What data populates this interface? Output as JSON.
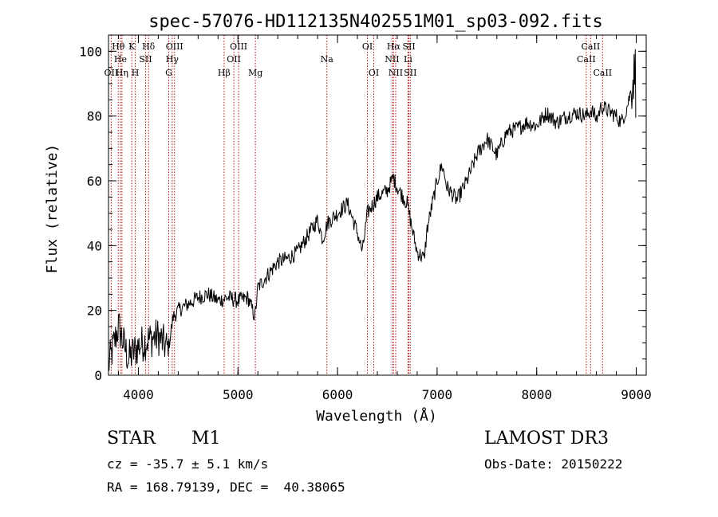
{
  "title": "spec-57076-HD112135N402551M01_sp03-092.fits",
  "footer": {
    "object_class": "STAR",
    "subclass": "M1",
    "redshift": "cz = -35.7 ± 5.1 km/s",
    "coords": "RA = 168.79139, DEC =  40.38065",
    "survey": "LAMOST DR3",
    "obs_date": "Obs-Date: 20150222"
  },
  "chart_data": {
    "type": "line",
    "title": "spec-57076-HD112135N402551M01_sp03-092.fits",
    "xlabel": "Wavelength (Å)",
    "ylabel": "Flux (relative)",
    "xlim": [
      3700,
      9100
    ],
    "ylim": [
      0,
      105
    ],
    "xticks": [
      4000,
      5000,
      6000,
      7000,
      8000,
      9000
    ],
    "yticks": [
      0,
      20,
      40,
      60,
      80,
      100
    ],
    "grid": false,
    "series": [
      {
        "x": [
          3700,
          3800,
          3900,
          4000,
          4100,
          4200,
          4300,
          4350,
          4400,
          4500,
          4600,
          4700,
          4800,
          4900,
          5000,
          5100,
          5170,
          5200,
          5300,
          5400,
          5500,
          5600,
          5700,
          5800,
          5850,
          5900,
          6000,
          6100,
          6200,
          6250,
          6300,
          6400,
          6500,
          6560,
          6600,
          6700,
          6750,
          6800,
          6870,
          6900,
          7000,
          7050,
          7100,
          7200,
          7300,
          7400,
          7500,
          7600,
          7700,
          7800,
          7900,
          8000,
          8100,
          8200,
          8300,
          8400,
          8500,
          8550,
          8600,
          8650,
          8700,
          8800,
          8850,
          8900,
          8950,
          8990,
          9000
        ],
        "y": [
          3,
          15,
          5,
          9,
          11,
          12,
          8,
          18,
          20,
          22,
          24,
          25,
          23,
          24,
          23,
          24,
          18,
          27,
          31,
          35,
          36,
          38,
          43,
          48,
          42,
          47,
          50,
          53,
          44,
          38,
          50,
          55,
          57,
          61,
          58,
          53,
          45,
          38,
          36,
          45,
          60,
          65,
          58,
          54,
          60,
          68,
          73,
          68,
          75,
          76,
          78,
          77,
          81,
          78,
          80,
          81,
          80,
          82,
          79,
          83,
          82,
          80,
          78,
          82,
          88,
          95,
          80
        ]
      }
    ],
    "line_marks": [
      {
        "label": "Hθ",
        "x": 3798,
        "row": 1
      },
      {
        "label": "OII",
        "x": 3727,
        "row": 3
      },
      {
        "label": "He",
        "x": 3820,
        "row": 2
      },
      {
        "label": "Hη",
        "x": 3835,
        "row": 3
      },
      {
        "label": "K",
        "x": 3934,
        "row": 1
      },
      {
        "label": "H",
        "x": 3969,
        "row": 3
      },
      {
        "label": "SII",
        "x": 4072,
        "row": 2
      },
      {
        "label": "Hδ",
        "x": 4102,
        "row": 1
      },
      {
        "label": "G",
        "x": 4305,
        "row": 3
      },
      {
        "label": "OIII",
        "x": 4363,
        "row": 1
      },
      {
        "label": "Hγ",
        "x": 4340,
        "row": 2
      },
      {
        "label": "Hβ",
        "x": 4861,
        "row": 3
      },
      {
        "label": "OIII",
        "x": 5007,
        "row": 1
      },
      {
        "label": "OII",
        "x": 4959,
        "row": 2
      },
      {
        "label": "Mg",
        "x": 5175,
        "row": 3
      },
      {
        "label": "Na",
        "x": 5893,
        "row": 2
      },
      {
        "label": "OI",
        "x": 6300,
        "row": 1
      },
      {
        "label": "OI",
        "x": 6364,
        "row": 3
      },
      {
        "label": "Hα",
        "x": 6563,
        "row": 1
      },
      {
        "label": "NII",
        "x": 6548,
        "row": 2
      },
      {
        "label": "NII",
        "x": 6584,
        "row": 3
      },
      {
        "label": "SII",
        "x": 6717,
        "row": 1
      },
      {
        "label": "Li",
        "x": 6708,
        "row": 2
      },
      {
        "label": "SII",
        "x": 6731,
        "row": 3
      },
      {
        "label": "CaII",
        "x": 8542,
        "row": 1
      },
      {
        "label": "CaII",
        "x": 8498,
        "row": 2
      },
      {
        "label": "CaII",
        "x": 8662,
        "row": 3
      }
    ]
  }
}
